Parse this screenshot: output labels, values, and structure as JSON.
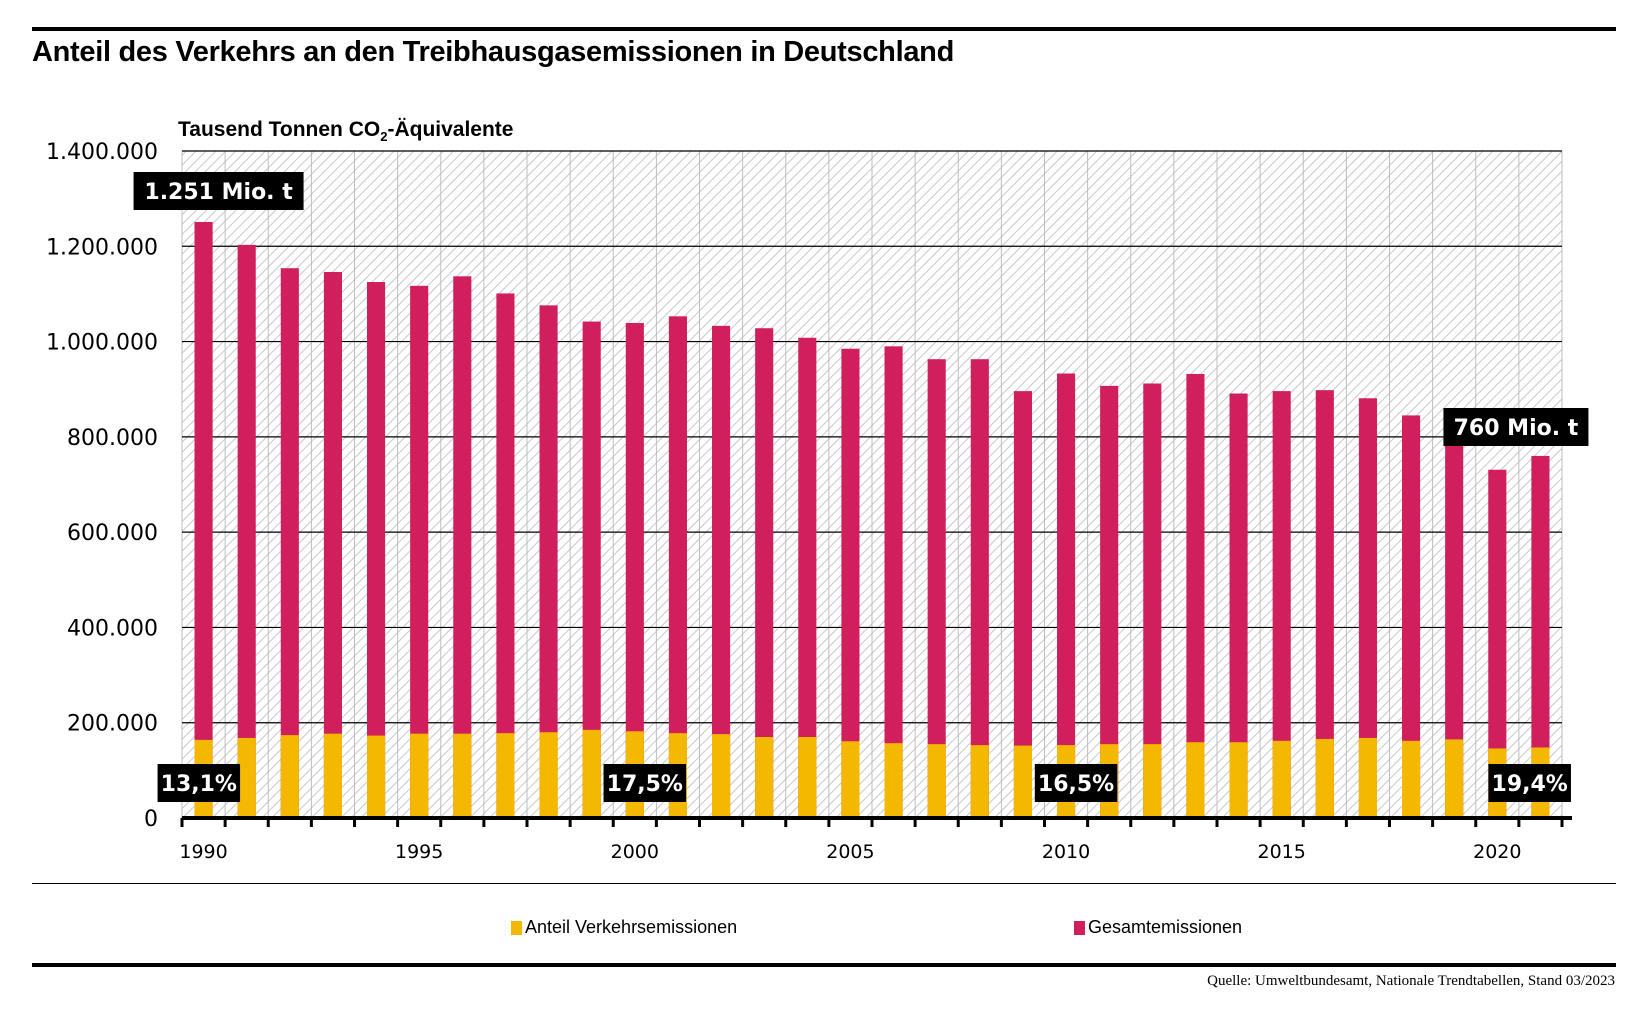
{
  "title": "Anteil des Verkehrs an den Treibhausgasemissionen in Deutschland",
  "unit_label": {
    "prefix": "Tausend Tonnen CO",
    "sub": "2",
    "suffix": "-Äquivalente"
  },
  "source": "Quelle: Umweltbundesamt, Nationale Trendtabellen, Stand 03/2023",
  "colors": {
    "transport": "#F5B800",
    "total": "#D01F5C",
    "label_bg": "#000000",
    "label_fg": "#ffffff"
  },
  "chart_data": {
    "type": "bar",
    "stacked": "overlay",
    "title": "Anteil des Verkehrs an den Treibhausgasemissionen in Deutschland",
    "ylabel": "Tausend Tonnen CO2-Äquivalente",
    "xlabel": "",
    "ylim": [
      0,
      1400000
    ],
    "yticks": [
      0,
      200000,
      400000,
      600000,
      800000,
      1000000,
      1200000,
      1400000
    ],
    "ytick_labels": [
      "0",
      "200.000",
      "400.000",
      "600.000",
      "800.000",
      "1.000.000",
      "1.200.000",
      "1.400.000"
    ],
    "xtick_labels": [
      "1990",
      "1995",
      "2000",
      "2005",
      "2010",
      "2015",
      "2020"
    ],
    "grid": true,
    "legend_position": "bottom",
    "categories": [
      "1990",
      "1991",
      "1992",
      "1993",
      "1994",
      "1995",
      "1996",
      "1997",
      "1998",
      "1999",
      "2000",
      "2001",
      "2002",
      "2003",
      "2004",
      "2005",
      "2006",
      "2007",
      "2008",
      "2009",
      "2010",
      "2011",
      "2012",
      "2013",
      "2014",
      "2015",
      "2016",
      "2017",
      "2018",
      "2019",
      "2020",
      "2021"
    ],
    "series": [
      {
        "name": "Gesamtemissionen",
        "color": "#D01F5C",
        "values": [
          1251000,
          1203000,
          1154000,
          1146000,
          1125000,
          1117000,
          1137000,
          1101000,
          1076000,
          1042000,
          1039000,
          1053000,
          1033000,
          1028000,
          1008000,
          985000,
          990000,
          963000,
          963000,
          896000,
          933000,
          907000,
          912000,
          932000,
          891000,
          896000,
          898000,
          881000,
          845000,
          792000,
          731000,
          760000
        ]
      },
      {
        "name": "Anteil Verkehrsemissionen",
        "color": "#F5B800",
        "values": [
          164000,
          168000,
          174000,
          177000,
          173000,
          177000,
          177000,
          178000,
          180000,
          185000,
          182000,
          178000,
          176000,
          170000,
          170000,
          161000,
          157000,
          155000,
          153000,
          152000,
          153000,
          155000,
          155000,
          159000,
          159000,
          162000,
          166000,
          168000,
          162000,
          165000,
          146000,
          148000
        ]
      }
    ],
    "annotations": [
      {
        "text": "1.251 Mio. t",
        "year": "1990",
        "anchor": "total"
      },
      {
        "text": "760 Mio. t",
        "year": "2021",
        "anchor": "total"
      },
      {
        "text": "13,1%",
        "year": "1990",
        "anchor": "transport"
      },
      {
        "text": "17,5%",
        "year": "2000",
        "anchor": "transport"
      },
      {
        "text": "16,5%",
        "year": "2010",
        "anchor": "transport"
      },
      {
        "text": "19,4%",
        "year": "2021",
        "anchor": "transport"
      }
    ],
    "legend": [
      "Anteil Verkehrsemissionen",
      "Gesamtemissionen"
    ]
  }
}
